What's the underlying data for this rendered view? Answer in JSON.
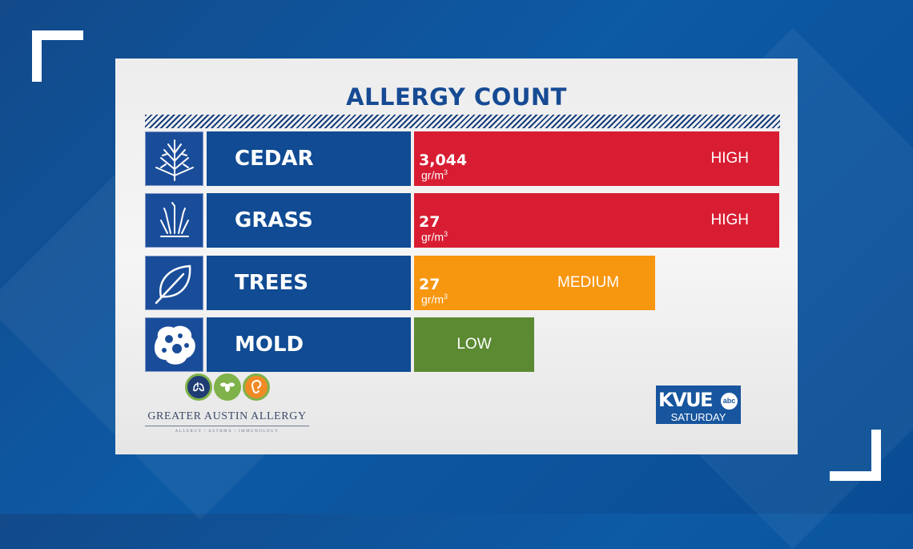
{
  "title": "ALLERGY COUNT",
  "colors": {
    "high": "#d81d33",
    "medium": "#f7960f",
    "low": "#5b8a32",
    "name_bg": "#104b93",
    "title": "#164a93"
  },
  "chart_data": {
    "type": "bar",
    "orientation": "horizontal",
    "title": "ALLERGY COUNT",
    "categories": [
      "CEDAR",
      "GRASS",
      "TREES",
      "MOLD"
    ],
    "levels": [
      "HIGH",
      "HIGH",
      "MEDIUM",
      "LOW"
    ],
    "level_fraction": [
      1.0,
      1.0,
      0.66,
      0.33
    ],
    "rows": [
      {
        "name": "CEDAR",
        "value": "3,044",
        "unit": "gr/m",
        "unit_sup": "3",
        "level": "HIGH",
        "icon": "cedar-icon"
      },
      {
        "name": "GRASS",
        "value": "27",
        "unit": "gr/m",
        "unit_sup": "3",
        "level": "HIGH",
        "icon": "grass-icon"
      },
      {
        "name": "TREES",
        "value": "27",
        "unit": "gr/m",
        "unit_sup": "3",
        "level": "MEDIUM",
        "icon": "leaf-icon"
      },
      {
        "name": "MOLD",
        "value": "",
        "unit": "",
        "unit_sup": "",
        "level": "LOW",
        "icon": "mold-icon"
      }
    ],
    "grid": false
  },
  "sponsor": {
    "name": "GREATER AUSTIN ALLERGY",
    "tagline": "ALLERGY | ASTHMA | IMMUNOLOGY",
    "icons": [
      "lungs-icon",
      "bee-icon",
      "ear-icon"
    ]
  },
  "station": {
    "name": "KVUE",
    "network": "abc",
    "program": "SATURDAY"
  }
}
